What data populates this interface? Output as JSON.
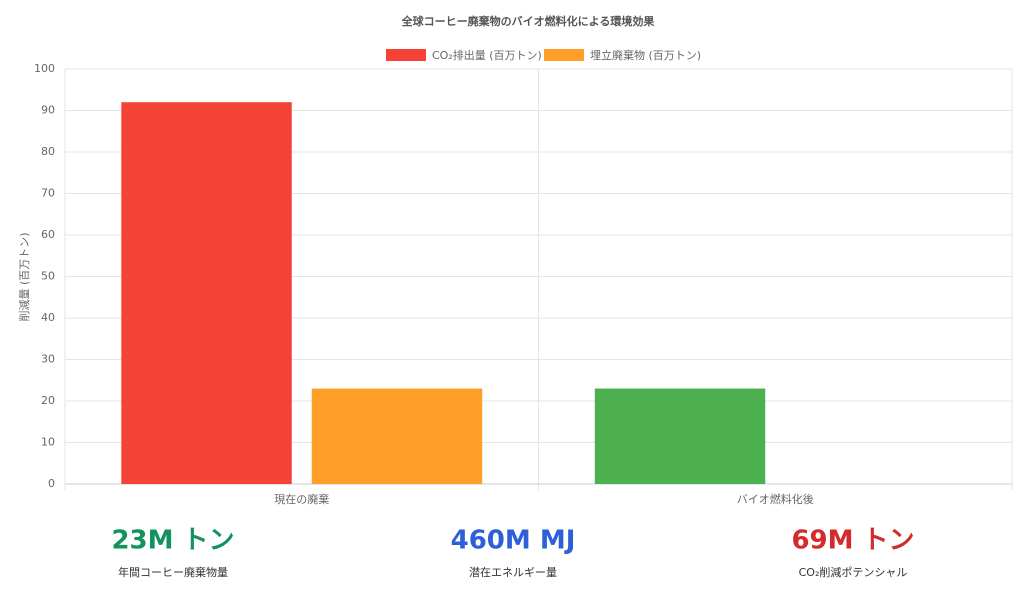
{
  "chart_data": {
    "type": "bar",
    "title": "全球コーヒー廃棄物のバイオ燃料化による環境効果",
    "y_label": "削減量 (百万トン)",
    "categories": [
      "現在の廃棄",
      "バイオ燃料化後"
    ],
    "series": [
      {
        "name": "CO₂排出量 (百万トン)",
        "color": "#f44336",
        "colors": [
          "#f44336",
          "#4caf50"
        ],
        "values": [
          92,
          23
        ]
      },
      {
        "name": "埋立廃棄物 (百万トン)",
        "color": "#ff9f2a",
        "colors": [
          "#ff9f2a",
          "#ff9f2a"
        ],
        "values": [
          23,
          0
        ]
      }
    ],
    "ylim": [
      0,
      100
    ],
    "yticks": [
      0,
      10,
      20,
      30,
      40,
      50,
      60,
      70,
      80,
      90,
      100
    ],
    "grid": true,
    "legend": "top"
  },
  "stats": [
    {
      "value": "23M トン",
      "label": "年間コーヒー廃棄物量",
      "color": "#12935e"
    },
    {
      "value": "460M MJ",
      "label": "潜在エネルギー量",
      "color": "#2d5fd8"
    },
    {
      "value": "69M トン",
      "label": "CO₂削減ポテンシャル",
      "color": "#d42a2a"
    }
  ]
}
